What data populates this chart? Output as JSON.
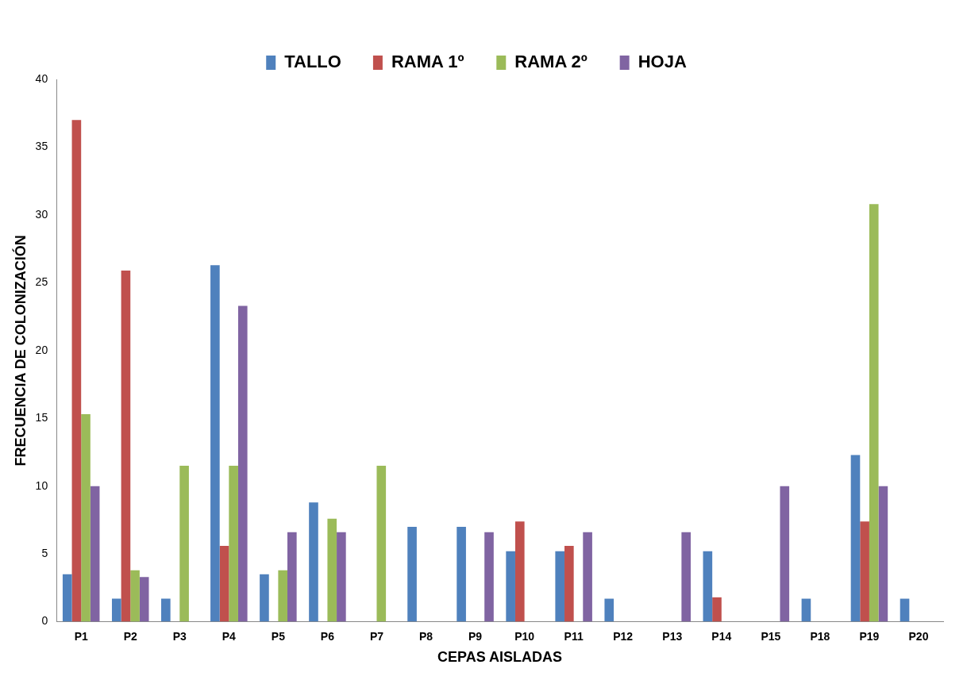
{
  "chart_data": {
    "type": "bar",
    "xlabel": "CEPAS AISLADAS",
    "ylabel": "FRECUENCIA DE COLONIZACIÓN",
    "categories": [
      "P1",
      "P2",
      "P3",
      "P4",
      "P5",
      "P6",
      "P7",
      "P8",
      "P9",
      "P10",
      "P11",
      "P12",
      "P13",
      "P14",
      "P15",
      "P18",
      "P19",
      "P20"
    ],
    "series": [
      {
        "name": "TALLO",
        "color": "#4f81bd",
        "values": [
          3.5,
          1.7,
          1.7,
          26.3,
          3.5,
          8.8,
          0,
          7,
          7,
          5.2,
          5.2,
          1.7,
          0,
          5.2,
          0,
          1.7,
          12.3,
          1.7
        ]
      },
      {
        "name": "RAMA 1º",
        "color": "#c0504d",
        "values": [
          37,
          25.9,
          0,
          5.6,
          0,
          0,
          0,
          0,
          0,
          7.4,
          5.6,
          0,
          0,
          1.8,
          0,
          0,
          7.4,
          0
        ]
      },
      {
        "name": "RAMA 2º",
        "color": "#9bbb59",
        "values": [
          15.3,
          3.8,
          11.5,
          11.5,
          3.8,
          7.6,
          11.5,
          0,
          0,
          0,
          0,
          0,
          0,
          0,
          0,
          0,
          30.8,
          0
        ]
      },
      {
        "name": "HOJA",
        "color": "#8064a2",
        "values": [
          10,
          3.3,
          0,
          23.3,
          6.6,
          6.6,
          0,
          0,
          6.6,
          0,
          6.6,
          0,
          6.6,
          0,
          10,
          0,
          10,
          0
        ]
      }
    ],
    "ylim": [
      0,
      40
    ],
    "yticks": [
      0,
      5,
      10,
      15,
      20,
      25,
      30,
      35,
      40
    ],
    "grid": false,
    "legend": "top"
  }
}
